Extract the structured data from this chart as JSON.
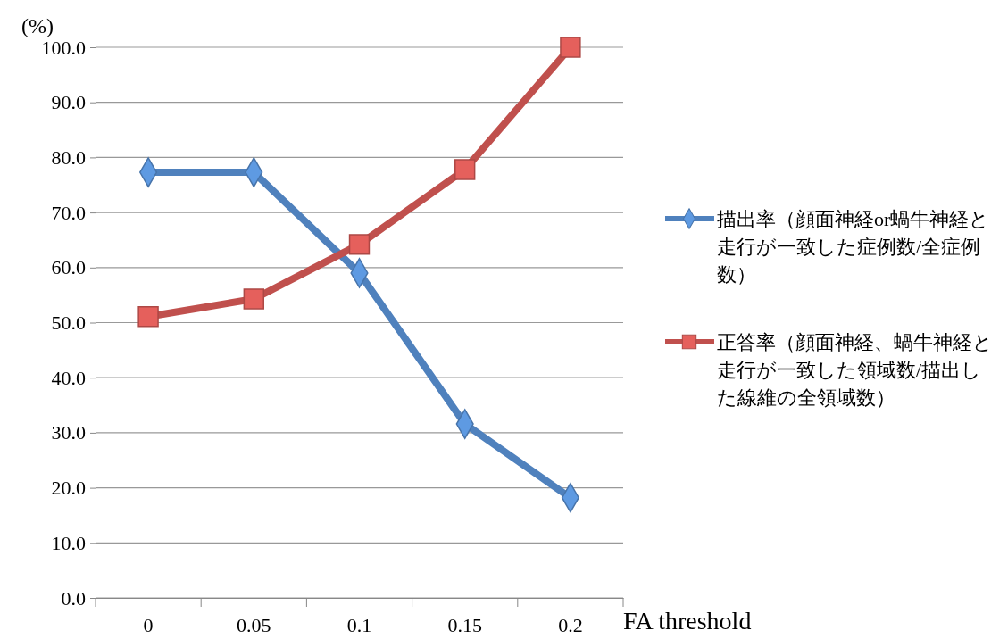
{
  "chart_data": {
    "type": "line",
    "xlabel": "FA threshold",
    "ylabel": "(%)",
    "categories": [
      "0",
      "0.05",
      "0.1",
      "0.15",
      "0.2"
    ],
    "series": [
      {
        "name": "描出率（顔面神経or蝸牛神経と走行が一致した症例数/全症例数）",
        "color": "#4f81bd",
        "marker": "diamond",
        "values": [
          77.3,
          77.3,
          59.0,
          31.6,
          18.2
        ]
      },
      {
        "name": "正答率（顔面神経、蝸牛神経と走行が一致した領域数/描出した線維の全領域数）",
        "color": "#c0504d",
        "marker": "square",
        "values": [
          51.1,
          54.3,
          64.2,
          77.8,
          100.0
        ]
      }
    ],
    "ylim": [
      0,
      100
    ],
    "yticks": [
      {
        "value": 0,
        "label": "0.0"
      },
      {
        "value": 10,
        "label": "10.0"
      },
      {
        "value": 20,
        "label": "20.0"
      },
      {
        "value": 30,
        "label": "30.0"
      },
      {
        "value": 40,
        "label": "40.0"
      },
      {
        "value": 50,
        "label": "50.0"
      },
      {
        "value": 60,
        "label": "60.0"
      },
      {
        "value": 70,
        "label": "70.0"
      },
      {
        "value": 80,
        "label": "80.0"
      },
      {
        "value": 90,
        "label": "90.0"
      },
      {
        "value": 100,
        "label": "100.0"
      }
    ],
    "grid": "y",
    "legend": "right",
    "line_style": "solid"
  }
}
